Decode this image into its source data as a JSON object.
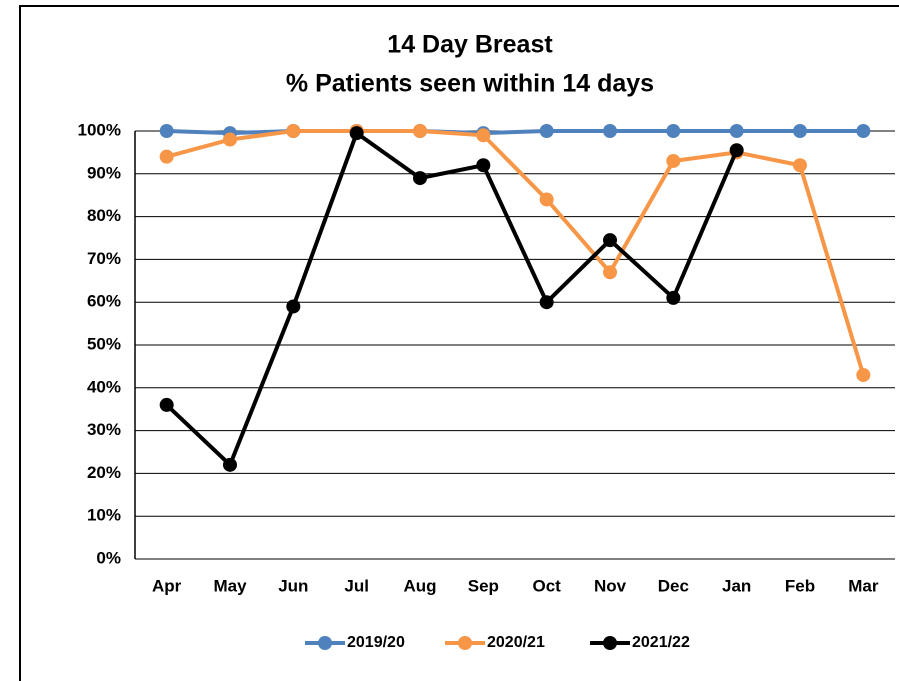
{
  "chart_data": {
    "type": "line",
    "title": "14 Day Breast",
    "subtitle": "% Patients seen within 14 days",
    "categories": [
      "Apr",
      "May",
      "Jun",
      "Jul",
      "Aug",
      "Sep",
      "Oct",
      "Nov",
      "Dec",
      "Jan",
      "Feb",
      "Mar"
    ],
    "series": [
      {
        "name": "2019/20",
        "color": "#4f81bd",
        "values": [
          100,
          99.5,
          100,
          100,
          100,
          99.5,
          100,
          100,
          100,
          100,
          100,
          100
        ]
      },
      {
        "name": "2020/21",
        "color": "#f79646",
        "values": [
          94,
          98,
          100,
          100,
          100,
          99,
          84,
          67,
          93,
          95,
          92,
          43
        ]
      },
      {
        "name": "2021/22",
        "color": "#000000",
        "values": [
          36,
          22,
          59,
          99.5,
          89,
          92,
          60,
          74.5,
          61,
          95.5,
          null,
          null
        ]
      }
    ],
    "ylim": [
      0,
      100
    ],
    "yticks": [
      {
        "value": 0,
        "label": "0%"
      },
      {
        "value": 10,
        "label": "10%"
      },
      {
        "value": 20,
        "label": "20%"
      },
      {
        "value": 30,
        "label": "30%"
      },
      {
        "value": 40,
        "label": "40%"
      },
      {
        "value": 50,
        "label": "50%"
      },
      {
        "value": 60,
        "label": "60%"
      },
      {
        "value": 70,
        "label": "70%"
      },
      {
        "value": 80,
        "label": "80%"
      },
      {
        "value": 90,
        "label": "90%"
      },
      {
        "value": 100,
        "label": "100%"
      }
    ],
    "grid": true,
    "legend": "bottom"
  }
}
